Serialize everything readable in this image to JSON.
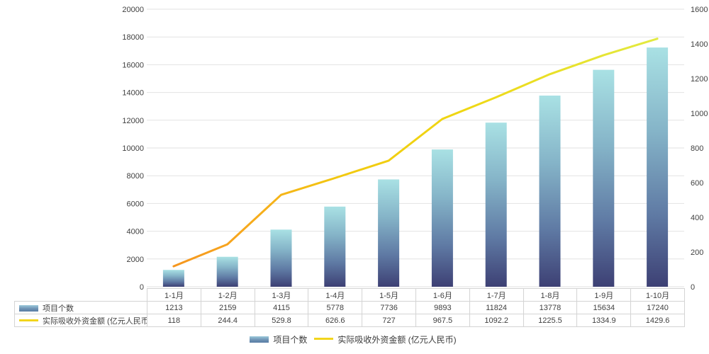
{
  "chart_data": {
    "type": "bar",
    "subtype": "combo-bar-line",
    "title": "",
    "categories": [
      "1-1月",
      "1-2月",
      "1-3月",
      "1-4月",
      "1-5月",
      "1-6月",
      "1-7月",
      "1-8月",
      "1-9月",
      "1-10月"
    ],
    "series": [
      {
        "name": "项目个数",
        "type": "bar",
        "axis": "left",
        "values": [
          1213,
          2159,
          4115,
          5778,
          7736,
          9893,
          11824,
          13778,
          15634,
          17240
        ]
      },
      {
        "name": "实际吸收外资金额 (亿元人民币)",
        "type": "line",
        "axis": "right",
        "values": [
          118,
          244.4,
          529.8,
          626.6,
          727,
          967.5,
          1092.2,
          1225.5,
          1334.9,
          1429.6
        ]
      }
    ],
    "left_axis": {
      "min": 0,
      "max": 20000,
      "step": 2000,
      "ticks": [
        "0",
        "2000",
        "4000",
        "6000",
        "8000",
        "10000",
        "12000",
        "14000",
        "16000",
        "18000",
        "20000"
      ]
    },
    "right_axis": {
      "min": 0,
      "max": 1600,
      "step": 200,
      "ticks": [
        "0",
        "200",
        "400",
        "600",
        "800",
        "1000",
        "1200",
        "1400",
        "1600"
      ]
    },
    "grid": true,
    "legend_position": "bottom"
  },
  "table": {
    "header": [
      "1-1月",
      "1-2月",
      "1-3月",
      "1-4月",
      "1-5月",
      "1-6月",
      "1-7月",
      "1-8月",
      "1-9月",
      "1-10月"
    ],
    "rows": [
      {
        "label": "项目个数",
        "swatch": "bar-swatch",
        "values": [
          "1213",
          "2159",
          "4115",
          "5778",
          "7736",
          "9893",
          "11824",
          "13778",
          "15634",
          "17240"
        ]
      },
      {
        "label": "实际吸收外资金额 (亿元人民币)",
        "swatch": "line-swatch",
        "values": [
          "118",
          "244.4",
          "529.8",
          "626.6",
          "727",
          "967.5",
          "1092.2",
          "1225.5",
          "1334.9",
          "1429.6"
        ]
      }
    ]
  },
  "legend": {
    "items": [
      {
        "label": "项目个数",
        "swatch": "bar-swatch"
      },
      {
        "label": "实际吸收外资金额 (亿元人民币)",
        "swatch": "line-swatch"
      }
    ]
  },
  "colors": {
    "bar_gradient": [
      "#a9e1e4",
      "#85b4c8",
      "#5f7aa4",
      "#3d4074"
    ],
    "bar_gradient_offsets": [
      0,
      0.35,
      0.7,
      1
    ],
    "line_gradient": [
      "#f5961e",
      "#f7a81e",
      "#f2c90f",
      "#efd713",
      "#e2ea41"
    ],
    "line_gradient_offsets": [
      0,
      0.14,
      0.35,
      0.6,
      1
    ],
    "grid": "#e2e2e2",
    "axis_text": "#404040",
    "table_border": "#d4d4d4",
    "legend_line_swatch": "#f2d51d"
  }
}
